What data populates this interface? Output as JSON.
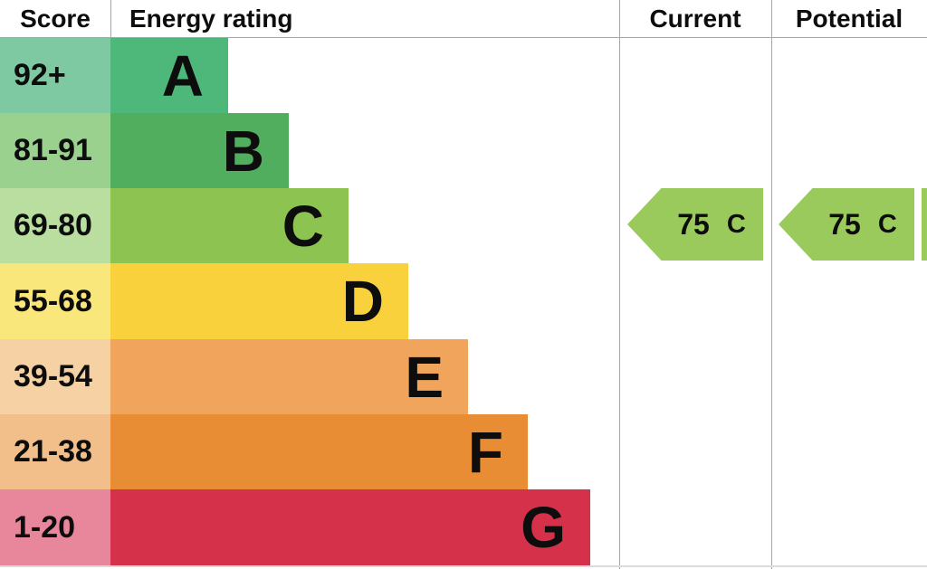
{
  "header": {
    "score_label": "Score",
    "energy_rating_label": "Energy rating",
    "current_label": "Current",
    "potential_label": "Potential"
  },
  "chart_data": {
    "type": "bar",
    "chart_kind": "EPC energy efficiency rating graph",
    "title": "Energy rating",
    "legend_position": "top",
    "grid": false,
    "bands": [
      {
        "score_range": "92+",
        "rating": "A",
        "bar_color": "#4eb87b",
        "score_cell_color": "#7ec8a2",
        "relative_bar_length": 0.25
      },
      {
        "score_range": "81-91",
        "rating": "B",
        "bar_color": "#51ae5e",
        "score_cell_color": "#9ad18f",
        "relative_bar_length": 0.37
      },
      {
        "score_range": "69-80",
        "rating": "C",
        "bar_color": "#8dc351",
        "score_cell_color": "#bade9f",
        "relative_bar_length": 0.5
      },
      {
        "score_range": "55-68",
        "rating": "D",
        "bar_color": "#f8d13d",
        "score_cell_color": "#f9e77c",
        "relative_bar_length": 0.62
      },
      {
        "score_range": "39-54",
        "rating": "E",
        "bar_color": "#f0a45c",
        "score_cell_color": "#f6d1a4",
        "relative_bar_length": 0.75
      },
      {
        "score_range": "21-38",
        "rating": "F",
        "bar_color": "#e88d33",
        "score_cell_color": "#f2bf8a",
        "relative_bar_length": 0.87
      },
      {
        "score_range": "1-20",
        "rating": "G",
        "bar_color": "#d5314a",
        "score_cell_color": "#e8869b",
        "relative_bar_length": 1.0
      }
    ],
    "current": {
      "score": "75",
      "rating": "C"
    },
    "potential": {
      "score": "75",
      "rating": "C"
    },
    "arrow_color": "#9aca5c"
  }
}
